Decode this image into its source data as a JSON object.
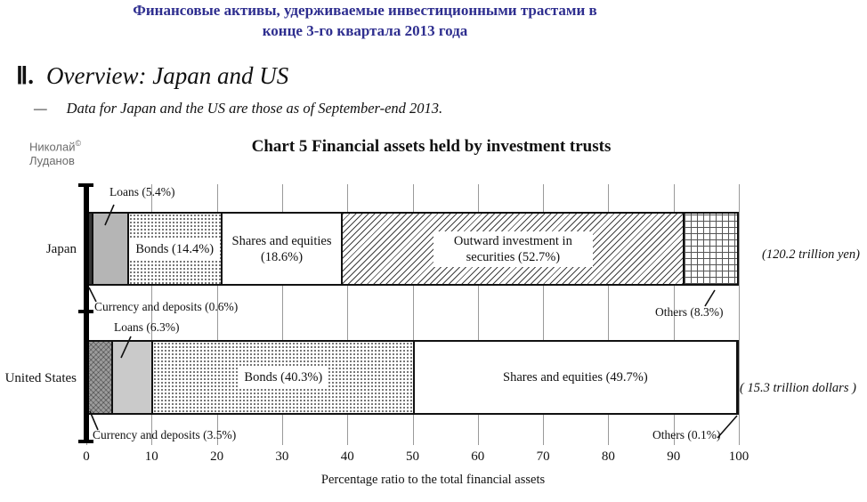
{
  "header": {
    "title_ru_line1": "Финансовые активы, удерживаемые инвестиционными трастами в",
    "title_ru_line2": "конце 3-го квартала 2013 года",
    "accent_color": "#2e2e8f",
    "section_numeral": "Ⅱ.",
    "section_title": "Overview: Japan and US",
    "bullet_dash": "—",
    "bullet_text": "Data for Japan and the US are those as of September-end 2013."
  },
  "watermark": {
    "line1": "Николай",
    "copyright_mark": "©",
    "line2": "Луданов",
    "color": "#6b6b6b"
  },
  "chart_data": {
    "type": "bar",
    "orientation": "horizontal",
    "stacked": true,
    "title": "Chart 5 Financial assets held by investment trusts",
    "xlabel": "Percentage ratio to the total financial assets",
    "xlim": [
      0,
      100
    ],
    "xticks": [
      0,
      10,
      20,
      30,
      40,
      50,
      60,
      70,
      80,
      90,
      100
    ],
    "grid": "vertical",
    "categories": [
      "Japan",
      "United States"
    ],
    "rows": [
      {
        "category": "Japan",
        "total_label": "(120.2 trillion yen)",
        "segments": [
          {
            "name": "Currency and deposits",
            "value": 0.6,
            "label": "Currency and deposits (0.6%)",
            "pattern": "solid-dark",
            "label_placement": "callout-below"
          },
          {
            "name": "Loans",
            "value": 5.4,
            "label": "Loans (5.4%)",
            "pattern": "solid-gray",
            "label_placement": "callout-above"
          },
          {
            "name": "Bonds",
            "value": 14.4,
            "label": "Bonds (14.4%)",
            "pattern": "dots",
            "label_placement": "inside",
            "label_box": true
          },
          {
            "name": "Shares and equities",
            "value": 18.6,
            "label": "Shares and equities (18.6%)",
            "pattern": "plain",
            "label_placement": "inside",
            "label_max_width": 130
          },
          {
            "name": "Outward investment in securities",
            "value": 52.7,
            "label": "Outward investment in securities (52.7%)",
            "pattern": "diagonal",
            "label_placement": "inside",
            "label_box": true,
            "label_max_width": 165
          },
          {
            "name": "Others",
            "value": 8.3,
            "label": "Others (8.3%)",
            "pattern": "grid",
            "label_placement": "callout-below"
          }
        ]
      },
      {
        "category": "United States",
        "total_label": "( 15.3 trillion dollars )",
        "segments": [
          {
            "name": "Currency and deposits",
            "value": 3.5,
            "label": "Currency and deposits (3.5%)",
            "pattern": "crosshatch-gray",
            "label_placement": "callout-below"
          },
          {
            "name": "Loans",
            "value": 6.3,
            "label": "Loans (6.3%)",
            "pattern": "solid-light",
            "label_placement": "callout-above"
          },
          {
            "name": "Bonds",
            "value": 40.3,
            "label": "Bonds (40.3%)",
            "pattern": "dots",
            "label_placement": "inside",
            "label_box": true
          },
          {
            "name": "Shares and equities",
            "value": 49.7,
            "label": "Shares and equities (49.7%)",
            "pattern": "plain",
            "label_placement": "inside"
          },
          {
            "name": "Others",
            "value": 0.1,
            "label": "Others (0.1%)",
            "pattern": "plain",
            "label_placement": "callout-below"
          }
        ]
      }
    ]
  }
}
